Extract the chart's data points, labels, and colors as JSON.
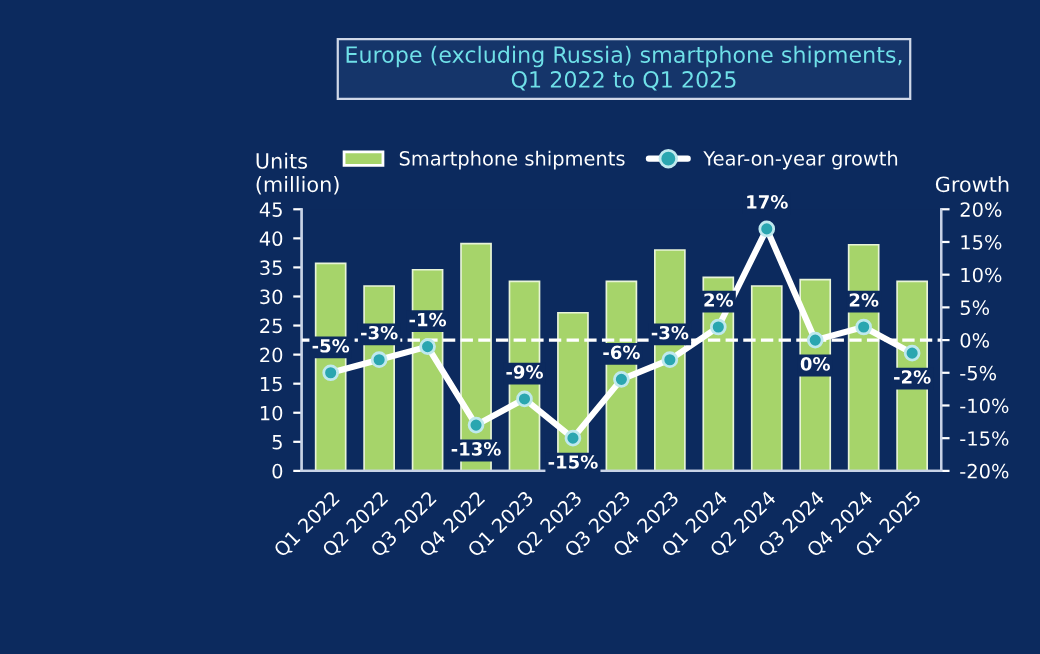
{
  "chart_data": {
    "type": "bar",
    "title": "Europe (excluding Russia) smartphone shipments,\nQ1 2022 to Q1 2025",
    "ylabel": "Units\n(million)",
    "y2label": "Growth",
    "categories": [
      "Q1 2022",
      "Q2 2022",
      "Q3 2022",
      "Q4 2022",
      "Q1 2023",
      "Q2 2023",
      "Q3 2023",
      "Q4 2023",
      "Q1 2024",
      "Q2 2024",
      "Q3 2024",
      "Q4 2024",
      "Q1 2025"
    ],
    "series": [
      {
        "name": "Smartphone shipments",
        "color": "#a6d46a",
        "values": [
          35.7,
          31.8,
          34.6,
          39.1,
          32.6,
          27.2,
          32.6,
          38.0,
          33.3,
          31.8,
          32.9,
          38.9,
          32.6
        ]
      },
      {
        "name": "Year-on-year growth",
        "type": "line",
        "axis": "y2",
        "color": "#ffffff",
        "marker": "circle",
        "values": [
          -5,
          -3,
          -1,
          -13,
          -9,
          -15,
          -6,
          -3,
          2,
          17,
          0,
          2,
          -2
        ],
        "value_labels": [
          "-5%",
          "-3%",
          "-1%",
          "-13%",
          "-9%",
          "-15%",
          "-6%",
          "-3%",
          "2%",
          "17%",
          "0%",
          "2%",
          "-2%"
        ]
      }
    ],
    "ylim": [
      0,
      45
    ],
    "yticks": [
      0,
      5,
      10,
      15,
      20,
      25,
      30,
      35,
      40,
      45
    ],
    "y2lim": [
      -20,
      20
    ],
    "y2ticks": [
      {
        "value": -20,
        "label": "-20%"
      },
      {
        "value": -15,
        "label": "-15%"
      },
      {
        "value": -10,
        "label": "-10%"
      },
      {
        "value": -5,
        "label": "-5%"
      },
      {
        "value": 0,
        "label": "0%"
      },
      {
        "value": 5,
        "label": "5%"
      },
      {
        "value": 10,
        "label": "10%"
      },
      {
        "value": 15,
        "label": "15%"
      },
      {
        "value": 20,
        "label": "20%"
      }
    ],
    "ref_lines": [
      {
        "axis": "y2",
        "value": 0,
        "color": "#ffffff",
        "line_style": "dashed"
      }
    ],
    "legend": "top",
    "grid": false
  }
}
